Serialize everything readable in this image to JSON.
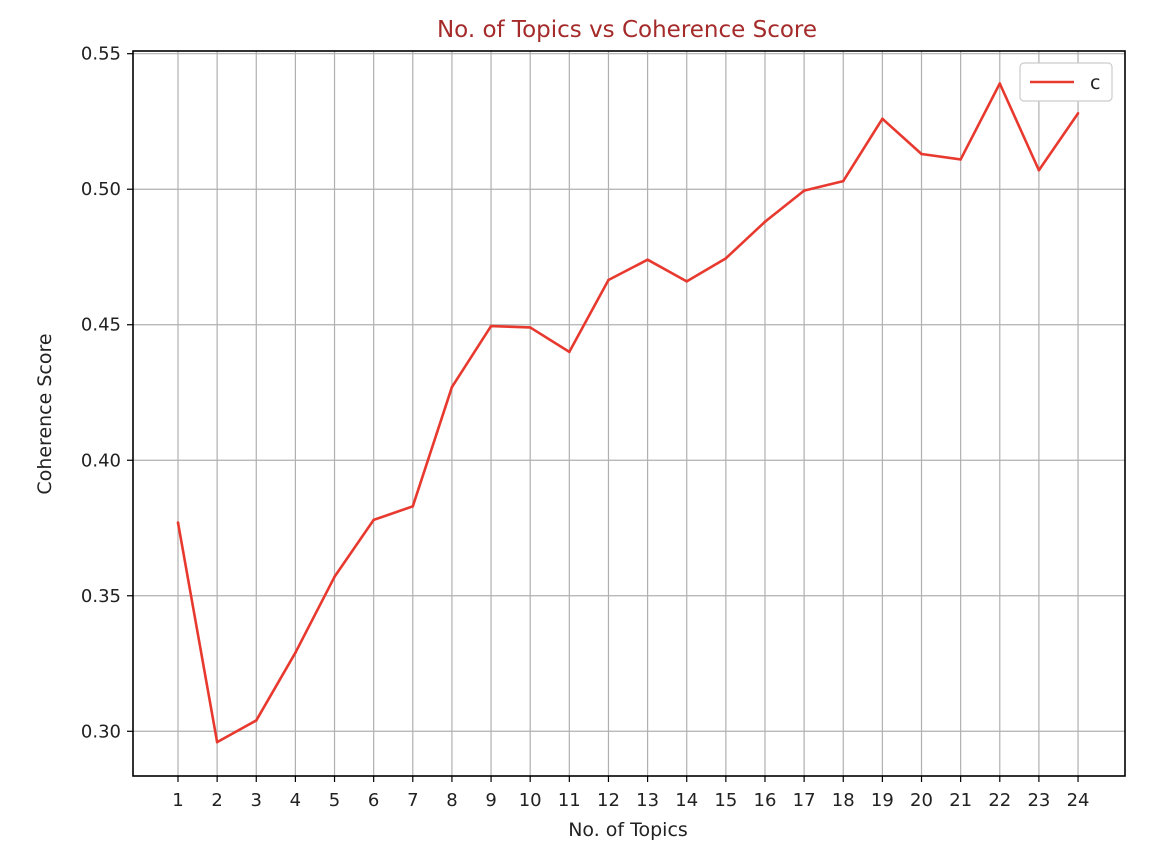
{
  "chart_data": {
    "type": "line",
    "title": "No. of Topics vs Coherence Score",
    "xlabel": "No. of Topics",
    "ylabel": "Coherence Score",
    "x": [
      1,
      2,
      3,
      4,
      5,
      6,
      7,
      8,
      9,
      10,
      11,
      12,
      13,
      14,
      15,
      16,
      17,
      18,
      19,
      20,
      21,
      22,
      23,
      24
    ],
    "series": [
      {
        "name": "c",
        "color": "#e8392f",
        "values": [
          0.377,
          0.296,
          0.304,
          0.329,
          0.357,
          0.378,
          0.383,
          0.427,
          0.4495,
          0.449,
          0.44,
          0.4665,
          0.474,
          0.466,
          0.4745,
          0.488,
          0.4995,
          0.503,
          0.526,
          0.513,
          0.511,
          0.539,
          0.507,
          0.528
        ]
      }
    ],
    "xticks": [
      "1",
      "2",
      "3",
      "4",
      "5",
      "6",
      "7",
      "8",
      "9",
      "10",
      "11",
      "12",
      "13",
      "14",
      "15",
      "16",
      "17",
      "18",
      "19",
      "20",
      "21",
      "22",
      "23",
      "24"
    ],
    "yticks": [
      "0.30",
      "0.35",
      "0.40",
      "0.45",
      "0.50",
      "0.55"
    ],
    "ytick_values": [
      0.3,
      0.35,
      0.4,
      0.45,
      0.5,
      0.55
    ],
    "xlim": [
      -0.15,
      25.2
    ],
    "ylim": [
      0.2835,
      0.551
    ],
    "grid": true,
    "legend_position": "top-right"
  }
}
